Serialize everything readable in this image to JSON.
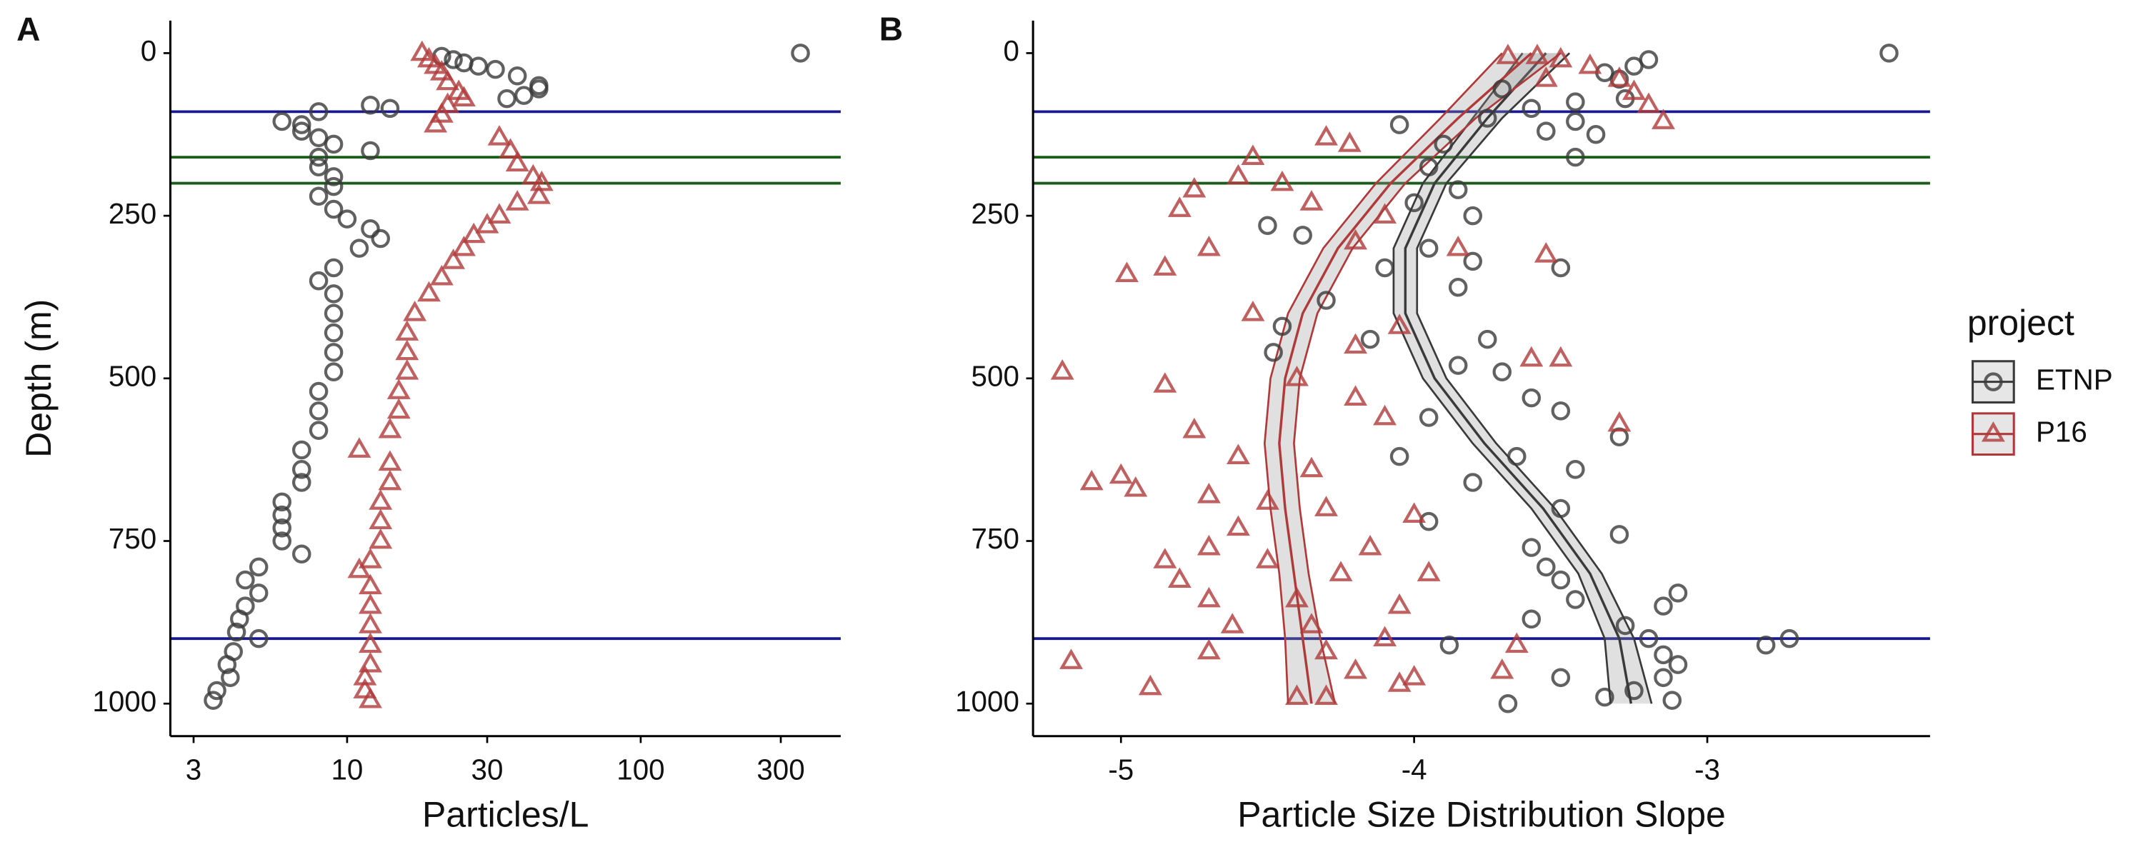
{
  "chart_data": [
    {
      "type": "scatter",
      "panel_label": "A",
      "xlabel": "Particles/L",
      "ylabel": "Depth (m)",
      "xscale": "log",
      "xlim": [
        2.5,
        480
      ],
      "xticks": [
        3,
        10,
        30,
        100,
        300
      ],
      "ylim": [
        -50,
        1050
      ],
      "y_reversed": true,
      "yticks": [
        0,
        250,
        500,
        750,
        1000
      ],
      "hlines": [
        {
          "value": 90,
          "color": "#1a1a8c"
        },
        {
          "value": 160,
          "color": "#1a5c1a"
        },
        {
          "value": 200,
          "color": "#1a5c1a"
        },
        {
          "value": 900,
          "color": "#1a1a8c"
        }
      ],
      "series": [
        {
          "name": "ETNP",
          "color": "#3a3a3a",
          "marker": "circle",
          "x": [
            350,
            21,
            23,
            25,
            28,
            32,
            38,
            45,
            45,
            40,
            35,
            8,
            14,
            12,
            6,
            7,
            7,
            8,
            9,
            12,
            8,
            8,
            9,
            9,
            8,
            9,
            10,
            12,
            13,
            11,
            9,
            8,
            9,
            9,
            9,
            9,
            9,
            8,
            8,
            8,
            7,
            7,
            7,
            6,
            6,
            6,
            6,
            7,
            5,
            4.5,
            5,
            4.5,
            4.3,
            4.2,
            5,
            4.1,
            3.9,
            4,
            3.6,
            3.5
          ],
          "y": [
            0,
            5,
            10,
            15,
            20,
            25,
            35,
            50,
            55,
            65,
            70,
            90,
            85,
            80,
            105,
            110,
            120,
            130,
            140,
            150,
            160,
            175,
            190,
            205,
            220,
            240,
            255,
            270,
            285,
            300,
            330,
            350,
            370,
            400,
            430,
            460,
            490,
            520,
            550,
            580,
            610,
            640,
            660,
            690,
            710,
            730,
            750,
            770,
            790,
            810,
            830,
            850,
            870,
            890,
            900,
            920,
            940,
            960,
            980,
            995
          ]
        },
        {
          "name": "P16",
          "color": "#b03a3a",
          "marker": "triangle",
          "x": [
            18,
            19,
            20,
            21,
            22,
            24,
            25,
            22,
            21,
            20,
            33,
            36,
            38,
            43,
            46,
            45,
            38,
            33,
            30,
            27,
            25,
            23,
            21,
            19,
            17,
            16,
            16,
            16,
            15,
            15,
            14,
            11,
            14,
            14,
            13,
            13,
            13,
            12,
            11,
            12,
            12,
            12,
            12,
            12,
            11.5,
            11.5,
            12
          ],
          "y": [
            0,
            10,
            20,
            30,
            45,
            60,
            70,
            80,
            95,
            110,
            130,
            150,
            170,
            190,
            200,
            220,
            230,
            250,
            265,
            280,
            300,
            320,
            345,
            370,
            400,
            430,
            460,
            490,
            520,
            550,
            580,
            610,
            630,
            660,
            690,
            720,
            750,
            780,
            795,
            820,
            850,
            880,
            910,
            940,
            960,
            980,
            995
          ]
        }
      ]
    },
    {
      "type": "scatter",
      "panel_label": "B",
      "xlabel": "Particle Size Distribution Slope",
      "legend_title": "project",
      "xlim": [
        -5.3,
        -2.24
      ],
      "xticks": [
        -5,
        -4,
        -3
      ],
      "ylim": [
        -50,
        1050
      ],
      "y_reversed": true,
      "yticks": [
        0,
        250,
        500,
        750,
        1000
      ],
      "hlines": [
        {
          "value": 90,
          "color": "#1a1a8c"
        },
        {
          "value": 160,
          "color": "#1a5c1a"
        },
        {
          "value": 200,
          "color": "#1a5c1a"
        },
        {
          "value": 900,
          "color": "#1a1a8c"
        }
      ],
      "series": [
        {
          "name": "ETNP",
          "color": "#3a3a3a",
          "marker": "circle",
          "x": [
            -2.38,
            -3.2,
            -3.25,
            -3.35,
            -3.3,
            -3.7,
            -3.28,
            -3.45,
            -3.6,
            -3.75,
            -3.45,
            -3.55,
            -3.38,
            -3.45,
            -4.05,
            -3.9,
            -3.95,
            -4.0,
            -3.85,
            -3.8,
            -4.5,
            -4.38,
            -3.95,
            -3.8,
            -3.5,
            -4.1,
            -3.85,
            -4.3,
            -4.45,
            -4.15,
            -3.75,
            -4.48,
            -3.85,
            -3.7,
            -3.6,
            -3.5,
            -3.95,
            -3.3,
            -3.65,
            -3.45,
            -3.8,
            -3.5,
            -3.95,
            -3.3,
            -3.6,
            -3.55,
            -3.5,
            -3.45,
            -3.1,
            -3.15,
            -3.6,
            -3.28,
            -3.2,
            -2.8,
            -2.72,
            -3.15,
            -3.1,
            -3.15,
            -3.5,
            -3.25,
            -3.35,
            -3.12,
            -3.68,
            -3.88,
            -4.05
          ],
          "y": [
            0,
            10,
            20,
            30,
            40,
            55,
            70,
            75,
            85,
            100,
            105,
            120,
            125,
            160,
            110,
            140,
            175,
            230,
            210,
            250,
            265,
            280,
            300,
            320,
            330,
            330,
            360,
            380,
            420,
            440,
            440,
            460,
            480,
            490,
            530,
            550,
            560,
            590,
            620,
            640,
            660,
            700,
            720,
            740,
            760,
            790,
            810,
            840,
            830,
            850,
            870,
            880,
            900,
            910,
            900,
            925,
            940,
            960,
            960,
            980,
            990,
            995,
            1000,
            910,
            620
          ],
          "fit": {
            "y": [
              0,
              100,
              200,
              300,
              400,
              500,
              600,
              700,
              800,
              900,
              1000
            ],
            "x": [
              -3.55,
              -3.75,
              -3.93,
              -4.03,
              -4.03,
              -3.93,
              -3.76,
              -3.56,
              -3.4,
              -3.3,
              -3.26
            ],
            "lower": [
              -3.63,
              -3.8,
              -3.97,
              -4.07,
              -4.07,
              -3.97,
              -3.8,
              -3.6,
              -3.44,
              -3.35,
              -3.33
            ],
            "upper": [
              -3.47,
              -3.7,
              -3.89,
              -3.99,
              -3.99,
              -3.89,
              -3.72,
              -3.52,
              -3.36,
              -3.25,
              -3.19
            ]
          }
        },
        {
          "name": "P16",
          "color": "#b03a3a",
          "marker": "triangle",
          "x": [
            -3.68,
            -3.58,
            -3.5,
            -3.4,
            -3.3,
            -3.25,
            -3.2,
            -3.15,
            -3.55,
            -4.3,
            -4.22,
            -4.55,
            -4.6,
            -4.75,
            -4.45,
            -4.35,
            -4.8,
            -4.7,
            -4.98,
            -4.85,
            -4.1,
            -4.2,
            -3.85,
            -3.55,
            -4.55,
            -4.05,
            -4.2,
            -3.5,
            -3.6,
            -5.2,
            -4.85,
            -4.4,
            -4.2,
            -4.1,
            -3.3,
            -4.75,
            -4.6,
            -4.35,
            -5.0,
            -5.1,
            -4.95,
            -4.7,
            -4.5,
            -4.3,
            -4.0,
            -4.6,
            -4.7,
            -4.15,
            -4.85,
            -4.5,
            -4.25,
            -3.95,
            -4.8,
            -4.7,
            -4.4,
            -4.05,
            -4.62,
            -4.35,
            -4.1,
            -4.7,
            -4.3,
            -5.17,
            -4.2,
            -4.0,
            -4.9,
            -4.4,
            -4.3,
            -4.05,
            -3.7,
            -3.65
          ],
          "y": [
            5,
            5,
            10,
            20,
            40,
            60,
            80,
            105,
            40,
            130,
            140,
            160,
            190,
            210,
            200,
            230,
            240,
            300,
            340,
            330,
            250,
            290,
            300,
            310,
            400,
            420,
            450,
            470,
            470,
            490,
            510,
            500,
            530,
            560,
            570,
            580,
            620,
            640,
            650,
            660,
            670,
            680,
            690,
            700,
            710,
            730,
            760,
            760,
            780,
            780,
            800,
            800,
            810,
            840,
            840,
            850,
            880,
            880,
            900,
            920,
            920,
            935,
            950,
            960,
            975,
            990,
            990,
            970,
            950,
            910
          ],
          "fit": {
            "y": [
              0,
              100,
              200,
              300,
              400,
              500,
              600,
              700,
              800,
              900,
              1000
            ],
            "x": [
              -3.6,
              -3.85,
              -4.08,
              -4.26,
              -4.38,
              -4.44,
              -4.46,
              -4.44,
              -4.41,
              -4.38,
              -4.35
            ],
            "lower": [
              -3.7,
              -3.91,
              -4.13,
              -4.31,
              -4.43,
              -4.49,
              -4.51,
              -4.49,
              -4.46,
              -4.44,
              -4.43
            ],
            "upper": [
              -3.5,
              -3.79,
              -4.03,
              -4.21,
              -4.33,
              -4.39,
              -4.41,
              -4.39,
              -4.36,
              -4.32,
              -4.27
            ]
          }
        }
      ]
    }
  ]
}
